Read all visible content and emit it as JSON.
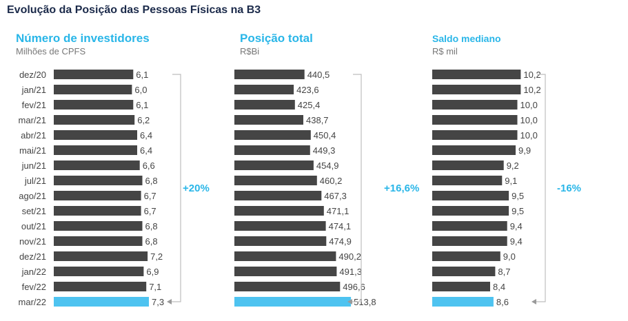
{
  "title": "Evolução da Posição das Pessoas Físicas na B3",
  "colors": {
    "bar": "#454545",
    "highlight": "#4ec3f0",
    "accent": "#29b6e8",
    "bracket": "#bdbdbd"
  },
  "chart_data": [
    {
      "type": "bar",
      "orientation": "horizontal",
      "title": "Número de investidores",
      "subtitle": "Milhões de CPFS",
      "categories": [
        "dez/20",
        "jan/21",
        "fev/21",
        "mar/21",
        "abr/21",
        "mai/21",
        "jun/21",
        "jul/21",
        "ago/21",
        "set/21",
        "out/21",
        "nov/21",
        "dez/21",
        "jan/22",
        "fev/22",
        "mar/22"
      ],
      "values": [
        6.1,
        6.0,
        6.1,
        6.2,
        6.4,
        6.4,
        6.6,
        6.8,
        6.7,
        6.7,
        6.8,
        6.8,
        7.2,
        6.9,
        7.1,
        7.3
      ],
      "labels": [
        "6,1",
        "6,0",
        "6,1",
        "6,2",
        "6,4",
        "6,4",
        "6,6",
        "6,8",
        "6,7",
        "6,7",
        "6,8",
        "6,8",
        "7,2",
        "6,9",
        "7,1",
        "7,3"
      ],
      "highlight_index": 15,
      "change_label": "+20%"
    },
    {
      "type": "bar",
      "orientation": "horizontal",
      "title": "Posição total",
      "subtitle": "R$Bi",
      "values": [
        440.5,
        423.6,
        425.4,
        438.7,
        450.4,
        449.3,
        454.9,
        460.2,
        467.3,
        471.1,
        474.1,
        474.9,
        490.2,
        491.3,
        496.6,
        513.8
      ],
      "labels": [
        "440,5",
        "423,6",
        "425,4",
        "438,7",
        "450,4",
        "449,3",
        "454,9",
        "460,2",
        "467,3",
        "471,1",
        "474,1",
        "474,9",
        "490,2",
        "491,3",
        "496,6",
        "513,8"
      ],
      "highlight_index": 15,
      "change_label": "+16,6%"
    },
    {
      "type": "bar",
      "orientation": "horizontal",
      "title": "Saldo mediano",
      "subtitle": "R$ mil",
      "values": [
        10.2,
        10.2,
        10.0,
        10.0,
        10.0,
        9.9,
        9.2,
        9.1,
        9.5,
        9.5,
        9.4,
        9.4,
        9.0,
        8.7,
        8.4,
        8.6
      ],
      "labels": [
        "10,2",
        "10,2",
        "10,0",
        "10,0",
        "10,0",
        "9,9",
        "9,2",
        "9,1",
        "9,5",
        "9,5",
        "9,4",
        "9,4",
        "9,0",
        "8,7",
        "8,4",
        "8,6"
      ],
      "highlight_index": 15,
      "change_label": "-16%"
    }
  ]
}
